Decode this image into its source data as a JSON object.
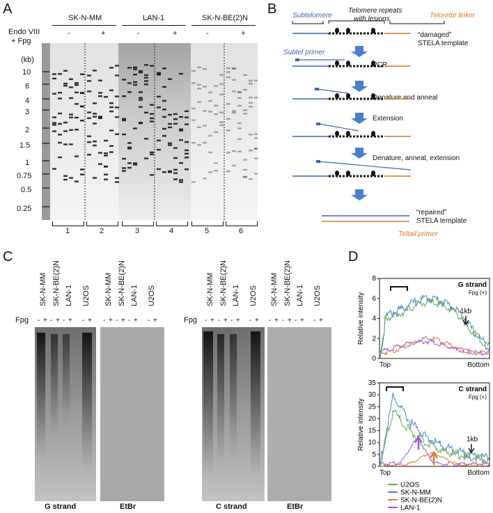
{
  "panels": {
    "a": "A",
    "b": "B",
    "c": "C",
    "d": "D"
  },
  "panelA": {
    "cell_lines": [
      "SK-N-MM",
      "LAN-1",
      "SK-N-BE(2)N"
    ],
    "treatment_line1": "Endo VIII",
    "treatment_line2": "+ Fpg",
    "minus": "-",
    "plus": "+",
    "kb_label": "(kb)",
    "size_markers": [
      "10",
      "6",
      "4",
      "3",
      "2",
      "1.5",
      "1",
      "0.75",
      "0.5",
      "0.25"
    ],
    "lane_numbers": [
      "1",
      "2",
      "3",
      "4",
      "5",
      "6"
    ]
  },
  "panelB": {
    "subtelomere": "Subtelomere",
    "telomere_repeats_line1": "Telomere repeats",
    "telomere_repeats_line2": "with lesions",
    "telorette": "Telorette linker",
    "damaged_line1": "“damaged”",
    "damaged_line2": "STELA template",
    "subtel_primer": "Subtel primer",
    "step_pcr": "PCR",
    "step_denature": "Denature and anneal",
    "step_extension": "Extension",
    "step_dae": "Denature, anneal, extension",
    "repaired_line1": "“repaired”",
    "repaired_line2": "STELA template",
    "teltail": "Teltail primer",
    "colors": {
      "blue": "#3a63b0",
      "orange": "#d07a2d",
      "arrow": "#4a7fcf"
    }
  },
  "panelC": {
    "lanes": [
      "SK-N-MM",
      "SK-N-BE(2)N",
      "LAN-1",
      "U2OS"
    ],
    "fpg_label": "Fpg",
    "pm": [
      "-",
      "+",
      "-",
      "+",
      "-",
      "+",
      "-",
      "+"
    ],
    "g_strand": "G strand",
    "c_strand": "C strand",
    "etbr": "EtBr"
  },
  "panelD": {
    "g_chart": {
      "title": "G strand",
      "subtitle": "Fpg (+)",
      "ylabel": "Relative intensity",
      "yticks": [
        "0",
        "2",
        "4",
        "6",
        "8"
      ],
      "xstart": "Top",
      "xend": "Bottom",
      "annotation": "1kb"
    },
    "c_chart": {
      "title": "C strand",
      "subtitle": "Fpg (+)",
      "ylabel": "Relative intensity",
      "yticks": [
        "0",
        "5",
        "10",
        "15",
        "20",
        "25",
        "30",
        "35"
      ],
      "xstart": "Top",
      "xend": "Bottom",
      "annotation": "1kb"
    },
    "legend": [
      {
        "name": "U2OS",
        "color": "#6aa84f"
      },
      {
        "name": "SK-N-MM",
        "color": "#4a86c8"
      },
      {
        "name": "SK-N-BE(2)N",
        "color": "#e07b39"
      },
      {
        "name": "LAN-1",
        "color": "#9b59d6"
      }
    ]
  }
}
